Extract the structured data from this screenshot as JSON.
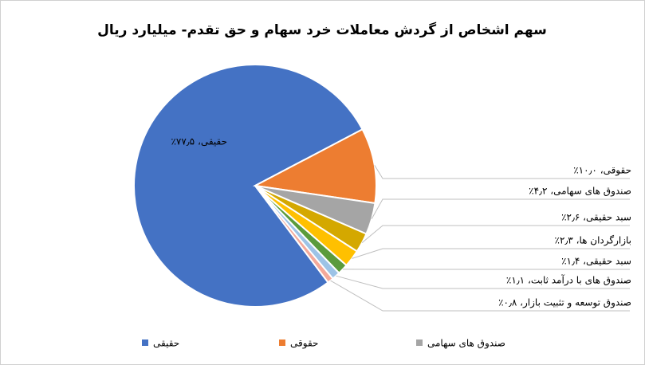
{
  "chart_data": {
    "type": "pie",
    "title": "سهم اشخاص از گردش معاملات خرد سهام و حق تقدم- میلیارد ریال",
    "values": [
      77.5,
      10.0,
      4.2,
      2.6,
      2.3,
      1.4,
      1.1,
      0.8
    ],
    "value_labels": [
      "حقیقی، ۷۷٫۵٪",
      "حقوقی، ۱۰٫۰٪",
      "صندوق های سهامی، ۴٫۲٪",
      "سبد حقیقی، ۲٫۶٪",
      "بازارگردان ها، ۲٫۳٪",
      "سبد حقیقی، ۱٫۴٪",
      "صندوق های با درآمد ثابت، ۱٫۱٪",
      "صندوق توسعه و تثبیت بازار، ۰٫۸٪"
    ],
    "colors": [
      "#4472c4",
      "#ed7d31",
      "#a5a5a5",
      "#d4a800",
      "#ffc000",
      "#5b9b3c",
      "#9dc3e6",
      "#f4a99a"
    ],
    "legend": {
      "position": "bottom",
      "entries": [
        "حقیقی",
        "حقوقی",
        "صندوق های سهامی"
      ]
    }
  }
}
